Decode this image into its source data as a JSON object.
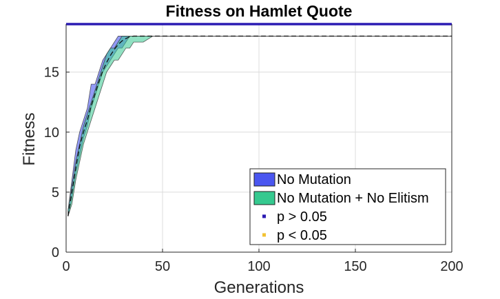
{
  "chart_data": {
    "type": "line",
    "title": "Fitness on Hamlet Quote",
    "xlabel": "Generations",
    "ylabel": "Fitness",
    "xlim": [
      0,
      200
    ],
    "ylim": [
      0,
      19
    ],
    "xticks": [
      0,
      50,
      100,
      150,
      200
    ],
    "yticks": [
      0,
      5,
      10,
      15
    ],
    "grid": true,
    "legend_position": "bottom-right",
    "max_fitness_line": {
      "y": 19,
      "color": "#2b1bb3"
    },
    "series": [
      {
        "name": "No Mutation",
        "color": "#4a56f0",
        "x": [
          1,
          3,
          5,
          7,
          9,
          11,
          13,
          15,
          17,
          19,
          21,
          23,
          25,
          27,
          29,
          31,
          33,
          35,
          40,
          45,
          200
        ],
        "lower": [
          3,
          4.5,
          6.5,
          8,
          9.5,
          10.5,
          12,
          13,
          14,
          15,
          15.5,
          16,
          16.5,
          17,
          17,
          17.5,
          18,
          18,
          18,
          18,
          18
        ],
        "upper": [
          3.5,
          6,
          8.5,
          10,
          11,
          12,
          14,
          14,
          15,
          16,
          16.5,
          17,
          17.5,
          18,
          18,
          18,
          18,
          18,
          18,
          18,
          18
        ]
      },
      {
        "name": "No Mutation + No Elitism",
        "color": "#35c98f",
        "x": [
          1,
          3,
          5,
          7,
          9,
          11,
          13,
          15,
          17,
          19,
          21,
          23,
          25,
          27,
          29,
          31,
          33,
          35,
          40,
          45,
          200
        ],
        "lower": [
          3,
          4,
          6,
          7.5,
          9,
          10,
          11,
          12,
          13,
          14,
          15,
          15.5,
          16,
          16,
          16.5,
          17,
          17,
          17.5,
          17.5,
          18,
          18
        ],
        "upper": [
          3.5,
          5.5,
          7.5,
          9,
          10.5,
          11.5,
          12.5,
          13.5,
          14.5,
          15.5,
          16.5,
          17,
          17,
          17.5,
          18,
          18,
          18,
          18,
          18,
          18,
          18
        ]
      }
    ],
    "mean_line": {
      "x": [
        1,
        3,
        5,
        7,
        9,
        11,
        13,
        15,
        17,
        19,
        21,
        23,
        25,
        27,
        29,
        31,
        33,
        35,
        40,
        200
      ],
      "y": [
        3,
        5,
        7,
        8.8,
        10,
        11,
        12.2,
        13.2,
        14.2,
        15.1,
        15.8,
        16.4,
        16.9,
        17.3,
        17.6,
        17.8,
        17.95,
        18,
        18,
        18
      ]
    },
    "legend": [
      {
        "label": "No Mutation",
        "kind": "patch",
        "color": "#4a56f0"
      },
      {
        "label": "No Mutation + No Elitism",
        "kind": "patch",
        "color": "#35c98f"
      },
      {
        "label": "p > 0.05",
        "kind": "marker",
        "color": "#2b1bb3"
      },
      {
        "label": "p < 0.05",
        "kind": "marker",
        "color": "#f2c232"
      }
    ]
  }
}
